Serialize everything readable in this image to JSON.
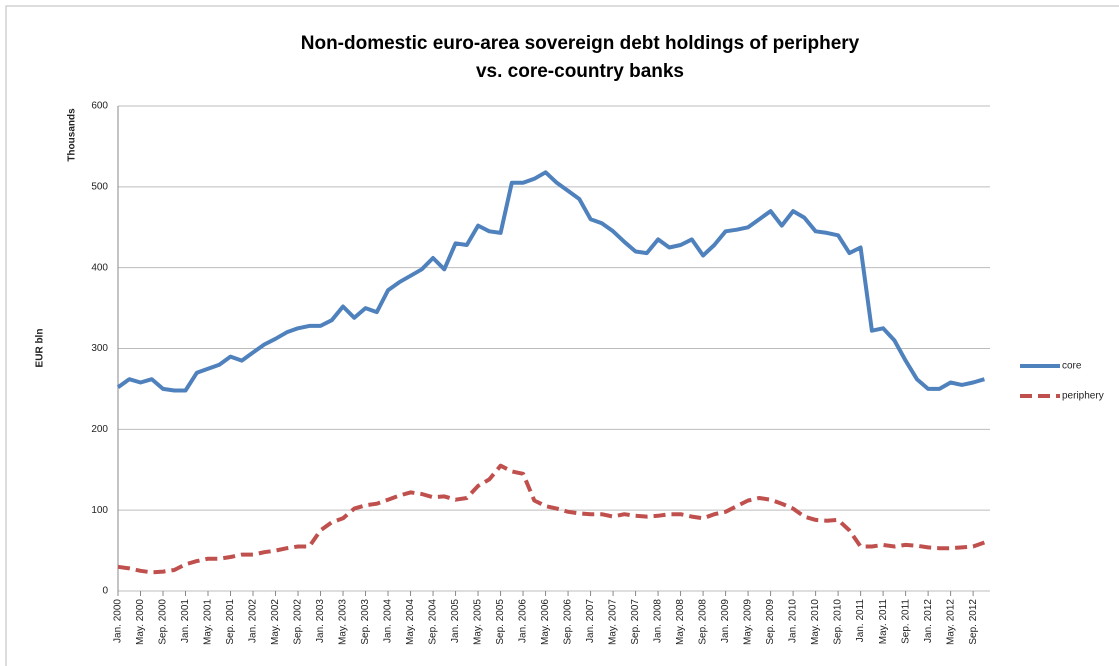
{
  "chart_data": {
    "type": "line",
    "title": "Non-domestic euro-area sovereign debt holdings of periphery vs. core-country banks",
    "y_label": "EUR bln",
    "y_unit_label": "Thousands",
    "categories": [
      "Jan. 2000",
      null,
      "May. 2000",
      null,
      "Sep. 2000",
      null,
      "Jan. 2001",
      null,
      "May. 2001",
      null,
      "Sep. 2001",
      null,
      "Jan. 2002",
      null,
      "May. 2002",
      null,
      "Sep. 2002",
      null,
      "Jan. 2003",
      null,
      "May. 2003",
      null,
      "Sep. 2003",
      null,
      "Jan. 2004",
      null,
      "May. 2004",
      null,
      "Sep. 2004",
      null,
      "Jan. 2005",
      null,
      "May. 2005",
      null,
      "Sep. 2005",
      null,
      "Jan. 2006",
      null,
      "May. 2006",
      null,
      "Sep. 2006",
      null,
      "Jan. 2007",
      null,
      "May. 2007",
      null,
      "Sep. 2007",
      null,
      "Jan. 2008",
      null,
      "May. 2008",
      null,
      "Sep. 2008",
      null,
      "Jan. 2009",
      null,
      "May. 2009",
      null,
      "Sep. 2009",
      null,
      "Jan. 2010",
      null,
      "May. 2010",
      null,
      "Sep. 2010",
      null,
      "Jan. 2011",
      null,
      "May. 2011",
      null,
      "Sep. 2011",
      null,
      "Jan. 2012",
      null,
      "May. 2012",
      null,
      "Sep. 2012",
      null
    ],
    "series": [
      {
        "name": "core",
        "color": "#4f81bd",
        "dash": false,
        "values": [
          252,
          262,
          258,
          262,
          250,
          248,
          248,
          270,
          275,
          280,
          290,
          285,
          295,
          305,
          312,
          320,
          325,
          328,
          328,
          335,
          352,
          338,
          350,
          345,
          372,
          382,
          390,
          398,
          412,
          398,
          430,
          428,
          452,
          445,
          443,
          505,
          505,
          510,
          518,
          505,
          495,
          485,
          460,
          455,
          445,
          432,
          420,
          418,
          435,
          425,
          428,
          435,
          415,
          428,
          445,
          447,
          450,
          460,
          470,
          452,
          470,
          462,
          445,
          443,
          440,
          418,
          425,
          322,
          325,
          310,
          285,
          262,
          250,
          250,
          258,
          255,
          258,
          262
        ]
      },
      {
        "name": "periphery",
        "color": "#c0504d",
        "dash": true,
        "values": [
          30,
          28,
          25,
          23,
          24,
          26,
          33,
          37,
          40,
          40,
          42,
          45,
          45,
          48,
          50,
          53,
          55,
          55,
          75,
          85,
          90,
          102,
          106,
          108,
          113,
          118,
          122,
          120,
          116,
          117,
          113,
          115,
          130,
          138,
          155,
          148,
          145,
          112,
          105,
          102,
          98,
          96,
          95,
          95,
          92,
          95,
          93,
          92,
          93,
          95,
          95,
          92,
          90,
          95,
          98,
          105,
          112,
          115,
          113,
          108,
          102,
          92,
          88,
          87,
          88,
          75,
          55,
          55,
          57,
          55,
          57,
          56,
          54,
          53,
          53,
          54,
          55,
          60
        ]
      }
    ],
    "ylim": [
      0,
      600
    ],
    "yticks": [
      0,
      100,
      200,
      300,
      400,
      500,
      600
    ],
    "grid": true,
    "legend": "right"
  }
}
